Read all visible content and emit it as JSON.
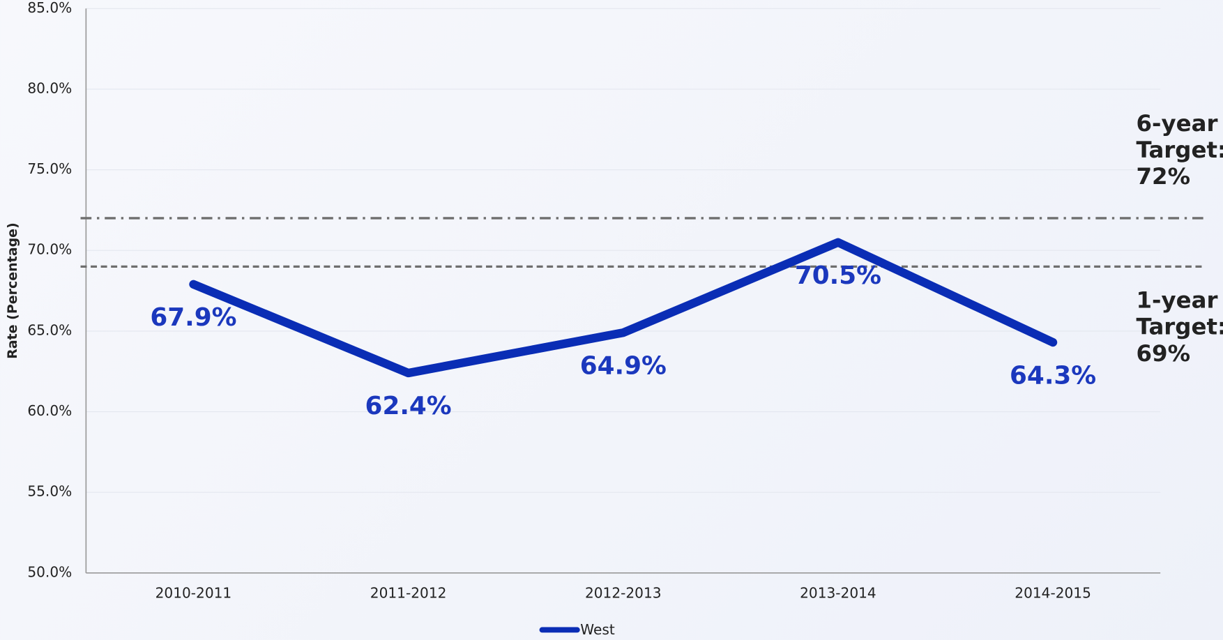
{
  "chart_data": {
    "type": "line",
    "y_label": "Rate (Percentage)",
    "categories": [
      "2010-2011",
      "2011-2012",
      "2012-2013",
      "2013-2014",
      "2014-2015"
    ],
    "series": [
      {
        "name": "West",
        "color": "#0a2db5",
        "values": [
          67.9,
          62.4,
          64.9,
          70.5,
          64.3
        ],
        "value_labels": [
          "67.9%",
          "62.4%",
          "64.9%",
          "70.5%",
          "64.3%"
        ]
      }
    ],
    "ylim": [
      50,
      85
    ],
    "yticks": [
      {
        "value": 50,
        "label": "50.0%"
      },
      {
        "value": 55,
        "label": "55.0%"
      },
      {
        "value": 60,
        "label": "60.0%"
      },
      {
        "value": 65,
        "label": "65.0%"
      },
      {
        "value": 70,
        "label": "70.0%"
      },
      {
        "value": 75,
        "label": "75.0%"
      },
      {
        "value": 80,
        "label": "80.0%"
      },
      {
        "value": 85,
        "label": "85.0%"
      }
    ],
    "grid": true,
    "legend": "bottom",
    "reference_lines": [
      {
        "value": 72,
        "style": "dashdot",
        "color": "#6e6e6e",
        "label": [
          "6-year",
          "Target:",
          "72%"
        ]
      },
      {
        "value": 69,
        "style": "dashed",
        "color": "#6e6e6e",
        "label": [
          "1-year",
          "Target:",
          "69%"
        ]
      }
    ]
  }
}
